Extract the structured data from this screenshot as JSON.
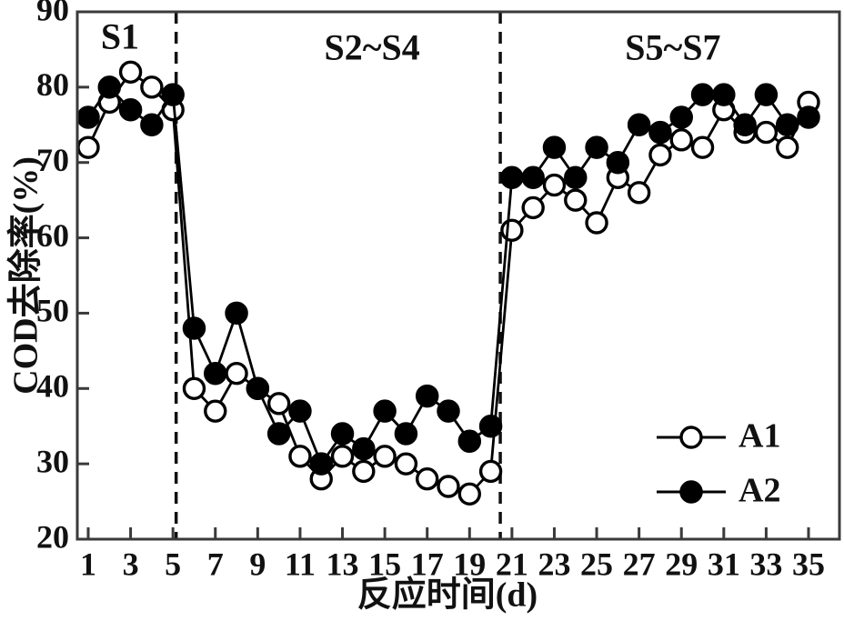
{
  "page": {
    "background": "#ffffff"
  },
  "chart_data": {
    "type": "line",
    "title": "",
    "xlabel": "反应时间(d)",
    "ylabel": "COD去除率(%)",
    "xlim": [
      0.5,
      36.5
    ],
    "ylim": [
      20,
      90
    ],
    "grid": false,
    "axis_color": "#3a3a3a",
    "data_color": "#000000",
    "x_ticks": [
      1,
      3,
      5,
      7,
      9,
      11,
      13,
      15,
      17,
      19,
      21,
      23,
      25,
      27,
      29,
      31,
      33,
      35
    ],
    "y_ticks": [
      20,
      30,
      40,
      50,
      60,
      70,
      80,
      90
    ],
    "x": [
      1,
      2,
      3,
      4,
      5,
      6,
      7,
      8,
      9,
      10,
      11,
      12,
      13,
      14,
      15,
      16,
      17,
      18,
      19,
      20,
      21,
      22,
      23,
      24,
      25,
      26,
      27,
      28,
      29,
      30,
      31,
      32,
      33,
      34,
      35
    ],
    "series": [
      {
        "name": "A1",
        "marker": "open-circle",
        "line_color": "#000000",
        "marker_fill": "#ffffff",
        "marker_stroke": "#000000",
        "values": [
          72,
          78,
          82,
          80,
          77,
          40,
          37,
          42,
          40,
          38,
          31,
          28,
          31,
          29,
          31,
          30,
          28,
          27,
          26,
          29,
          61,
          64,
          67,
          65,
          62,
          68,
          66,
          71,
          73,
          72,
          77,
          74,
          74,
          72,
          78
        ]
      },
      {
        "name": "A2",
        "marker": "filled-circle",
        "line_color": "#000000",
        "marker_fill": "#000000",
        "marker_stroke": "#000000",
        "values": [
          76,
          80,
          77,
          75,
          79,
          48,
          42,
          50,
          40,
          34,
          37,
          30,
          34,
          32,
          37,
          34,
          39,
          37,
          33,
          35,
          68,
          68,
          72,
          68,
          72,
          70,
          75,
          74,
          76,
          79,
          79,
          75,
          79,
          75,
          76
        ]
      }
    ],
    "phase_dividers_x": [
      5.15,
      20.45
    ],
    "annotations": [
      {
        "text": "S1",
        "x": 2.5,
        "y": 86.2
      },
      {
        "text": "S2~S4",
        "x": 14.4,
        "y": 84.8
      },
      {
        "text": "S5~S7",
        "x": 28.6,
        "y": 84.8
      }
    ],
    "legend": {
      "position": "lower-right",
      "entries": [
        "A1",
        "A2"
      ]
    }
  }
}
